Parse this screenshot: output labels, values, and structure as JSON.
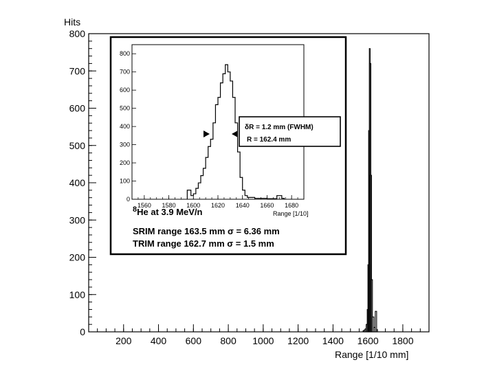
{
  "chart_data": [
    {
      "type": "bar",
      "subtype": "histogram",
      "ylabel": "Hits",
      "xlabel": "Range [1/10 mm]",
      "xlim": [
        0,
        1950
      ],
      "ylim": [
        0,
        800
      ],
      "x_ticks": [
        200,
        400,
        600,
        800,
        1000,
        1200,
        1400,
        1600,
        1800
      ],
      "y_ticks": [
        0,
        100,
        200,
        300,
        400,
        500,
        600,
        700,
        800
      ],
      "grid": false,
      "bins": [
        {
          "x": 1572,
          "y": 3
        },
        {
          "x": 1578,
          "y": 5
        },
        {
          "x": 1584,
          "y": 8
        },
        {
          "x": 1590,
          "y": 20
        },
        {
          "x": 1596,
          "y": 60
        },
        {
          "x": 1600,
          "y": 180
        },
        {
          "x": 1604,
          "y": 540
        },
        {
          "x": 1608,
          "y": 760
        },
        {
          "x": 1612,
          "y": 720
        },
        {
          "x": 1616,
          "y": 420
        },
        {
          "x": 1620,
          "y": 140
        },
        {
          "x": 1626,
          "y": 40
        },
        {
          "x": 1634,
          "y": 12
        },
        {
          "x": 1642,
          "y": 55
        },
        {
          "x": 1650,
          "y": 6
        }
      ]
    },
    {
      "type": "bar",
      "subtype": "histogram",
      "xlabel": "Range [1/10]",
      "xlim": [
        1550,
        1690
      ],
      "ylim": [
        0,
        850
      ],
      "x_ticks": [
        1560,
        1580,
        1600,
        1620,
        1640,
        1660,
        1680
      ],
      "x_tick_labels": [
        "1560",
        "1580",
        "1600",
        "1620",
        "1640",
        "1660",
        "1680"
      ],
      "y_ticks": [
        0,
        100,
        200,
        300,
        400,
        500,
        600,
        700,
        800
      ],
      "bins": [
        {
          "x": 1595,
          "y": 50
        },
        {
          "x": 1598,
          "y": 20
        },
        {
          "x": 1600,
          "y": 30
        },
        {
          "x": 1602,
          "y": 60
        },
        {
          "x": 1604,
          "y": 90
        },
        {
          "x": 1606,
          "y": 130
        },
        {
          "x": 1608,
          "y": 170
        },
        {
          "x": 1610,
          "y": 230
        },
        {
          "x": 1612,
          "y": 290
        },
        {
          "x": 1614,
          "y": 330
        },
        {
          "x": 1616,
          "y": 420
        },
        {
          "x": 1618,
          "y": 520
        },
        {
          "x": 1620,
          "y": 560
        },
        {
          "x": 1622,
          "y": 640
        },
        {
          "x": 1624,
          "y": 690
        },
        {
          "x": 1626,
          "y": 740
        },
        {
          "x": 1628,
          "y": 700
        },
        {
          "x": 1630,
          "y": 650
        },
        {
          "x": 1632,
          "y": 560
        },
        {
          "x": 1634,
          "y": 420
        },
        {
          "x": 1636,
          "y": 260
        },
        {
          "x": 1638,
          "y": 120
        },
        {
          "x": 1640,
          "y": 50
        },
        {
          "x": 1642,
          "y": 20
        },
        {
          "x": 1644,
          "y": 10
        },
        {
          "x": 1650,
          "y": 5
        },
        {
          "x": 1660,
          "y": 3
        },
        {
          "x": 1668,
          "y": 20
        },
        {
          "x": 1672,
          "y": 5
        }
      ]
    }
  ],
  "annotations": {
    "ion_mass": "8",
    "ion_label": "He at 3.9 MeV/n",
    "srim": "SRIM range 163.5 mm σ = 6.36 mm",
    "trim": "TRIM range 162.7 mm σ = 1.5 mm",
    "fwhm_symbol": "δ",
    "fwhm": "R = 1.2 mm (FWHM)",
    "range": "R = 162.4 mm"
  }
}
